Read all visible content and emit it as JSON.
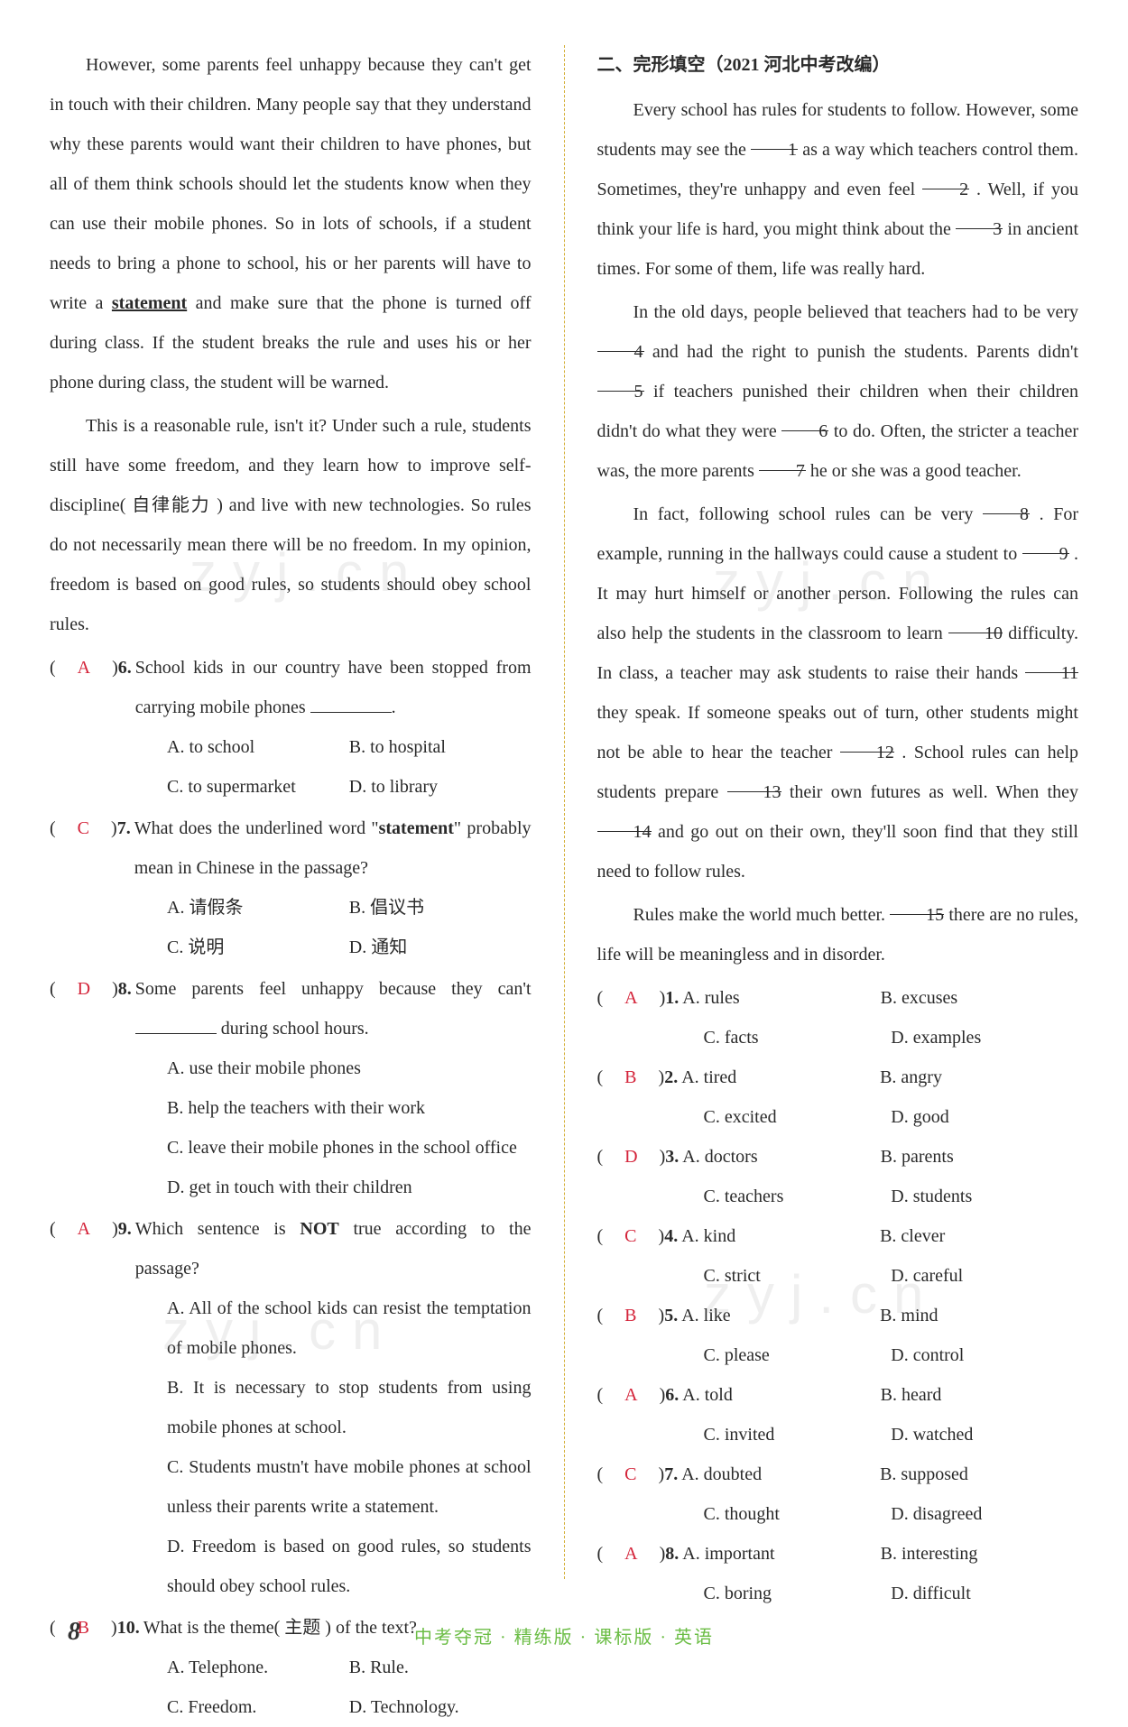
{
  "left": {
    "para1": "However, some parents feel unhappy because they can't get in touch with their children. Many people say that they understand why these parents would want their children to have phones, but all of them think schools should let the students know when they can use their mobile phones. So in lots of schools, if a student needs to bring a phone to school, his or her parents will have to write a ",
    "para1_underlined": "statement",
    "para1_after": " and make sure that the phone is turned off during class. If the student breaks the rule and uses his or her phone during class, the student will be warned.",
    "para2": "This is a reasonable rule, isn't it? Under such a rule, students still have some freedom, and they learn how to improve self-discipline( 自律能力 ) and live with new technologies. So rules do not necessarily mean there will be no freedom. In my opinion, freedom is based on good rules, so students should obey school rules.",
    "q6": {
      "ans": "A",
      "num": "6.",
      "text": "School kids in our country have been stopped from carrying mobile phones ",
      "A": "A. to school",
      "B": "B. to hospital",
      "C": "C. to supermarket",
      "D": "D. to library"
    },
    "q7": {
      "ans": "C",
      "num": "7.",
      "text_before": "What does the underlined word \"",
      "text_u": "statement",
      "text_after": "\" probably mean in Chinese in the passage?",
      "A": "A. 请假条",
      "B": "B. 倡议书",
      "C": "C. 说明",
      "D": "D. 通知"
    },
    "q8": {
      "ans": "D",
      "num": "8.",
      "text": "Some parents feel unhappy because they can't ",
      "text2": " during school hours.",
      "A": "A. use their mobile phones",
      "B": "B. help the teachers with their work",
      "C": "C. leave their mobile phones in the school office",
      "D": "D. get in touch with their children"
    },
    "q9": {
      "ans": "A",
      "num": "9.",
      "text_before": "Which sentence is ",
      "text_bold": "NOT",
      "text_after": " true according to the passage?",
      "A": "A. All of the school kids can resist the temptation of mobile phones.",
      "B": "B. It is necessary to stop students from using mobile phones at school.",
      "C": "C. Students mustn't have mobile phones at school unless their parents write a statement.",
      "D": "D. Freedom is based on good rules, so students should obey school rules."
    },
    "q10": {
      "ans": "B",
      "num": "10.",
      "text": "What is the theme( 主题 ) of the text?",
      "A": "A. Telephone.",
      "B": "B. Rule.",
      "C": "C. Freedom.",
      "D": "D. Technology."
    }
  },
  "right": {
    "title": "二、完形填空（2021 河北中考改编）",
    "p1_a": "Every school has rules for students to follow. However, some students may see the ",
    "p1_b": " as a way which teachers control them. Sometimes, they're unhappy and even feel ",
    "p1_c": " . Well, if you think your life is hard, you might think about the ",
    "p1_d": " in ancient times. For some of them, life was really hard.",
    "p2_a": "In the old days, people believed that teachers had to be very ",
    "p2_b": " and had the right to punish the students. Parents didn't ",
    "p2_c": " if teachers punished their children when their children didn't do what they were ",
    "p2_d": " to do. Often, the stricter a teacher was, the more parents ",
    "p2_e": " he or she was a good teacher.",
    "p3_a": "In fact, following school rules can be very ",
    "p3_b": " . For example, running in the hallways could cause a student to ",
    "p3_c": " . It may hurt himself or another person. Following the rules can also help the students in the classroom to learn ",
    "p3_d": " difficulty. In class, a teacher may ask students to raise their hands ",
    "p3_e": " they speak. If someone speaks out of turn, other students might not be able to hear the teacher ",
    "p3_f": " . School rules can help students prepare ",
    "p3_g": " their own futures as well. When they ",
    "p3_h": " and go out on their own, they'll soon find that they still need to follow rules.",
    "p4_a": "Rules make the world much better. ",
    "p4_b": " there are no rules, life will be meaningless and in disorder.",
    "blanks": {
      "1": "1",
      "2": "2",
      "3": "3",
      "4": "4",
      "5": "5",
      "6": "6",
      "7": "7",
      "8": "8",
      "9": "9",
      "10": "10",
      "11": "11",
      "12": "12",
      "13": "13",
      "14": "14",
      "15": "15"
    },
    "cloze": [
      {
        "ans": "A",
        "num": "1.",
        "A": "A. rules",
        "B": "B. excuses",
        "C": "C. facts",
        "D": "D. examples"
      },
      {
        "ans": "B",
        "num": "2.",
        "A": "A. tired",
        "B": "B. angry",
        "C": "C. excited",
        "D": "D. good"
      },
      {
        "ans": "D",
        "num": "3.",
        "A": "A. doctors",
        "B": "B. parents",
        "C": "C. teachers",
        "D": "D. students"
      },
      {
        "ans": "C",
        "num": "4.",
        "A": "A. kind",
        "B": "B. clever",
        "C": "C. strict",
        "D": "D. careful"
      },
      {
        "ans": "B",
        "num": "5.",
        "A": "A. like",
        "B": "B. mind",
        "C": "C. please",
        "D": "D. control"
      },
      {
        "ans": "A",
        "num": "6.",
        "A": "A. told",
        "B": "B. heard",
        "C": "C. invited",
        "D": "D. watched"
      },
      {
        "ans": "C",
        "num": "7.",
        "A": "A. doubted",
        "B": "B. supposed",
        "C": "C. thought",
        "D": "D. disagreed"
      },
      {
        "ans": "A",
        "num": "8.",
        "A": "A. important",
        "B": "B. interesting",
        "C": "C. boring",
        "D": "D. difficult"
      }
    ]
  },
  "footer": "中考夺冠 · 精练版 · 课标版 · 英语",
  "page_number": "8",
  "watermark": "zyj.cn"
}
